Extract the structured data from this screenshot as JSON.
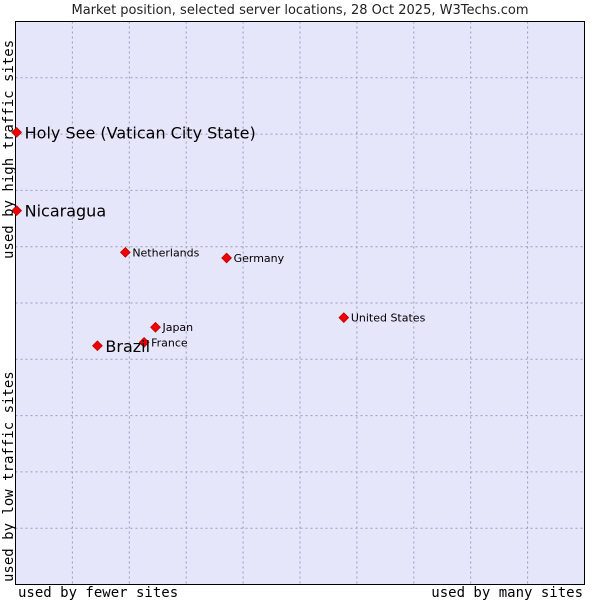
{
  "chart_data": {
    "type": "scatter",
    "title": "Market position, selected server locations, 28 Oct 2025, W3Techs.com",
    "xlabel_left": "used by fewer sites",
    "xlabel_right": "used by many sites",
    "ylabel_low": "used by low traffic sites",
    "ylabel_high": "used by high traffic sites",
    "xlim": [
      0,
      100
    ],
    "ylim": [
      0,
      100
    ],
    "grid": true,
    "colors": {
      "plot_bg": "#e6e6fa",
      "grid": "#9a9ab8",
      "marker": "#ee0000",
      "marker_edge": "#aa0000"
    },
    "points": [
      {
        "label": "Holy See (Vatican City State)",
        "x": 0.2,
        "y": 80.3,
        "emphasis": true
      },
      {
        "label": "Nicaragua",
        "x": 0.2,
        "y": 66.4,
        "emphasis": true
      },
      {
        "label": "Netherlands",
        "x": 19.3,
        "y": 59.0,
        "emphasis": false
      },
      {
        "label": "Germany",
        "x": 37.1,
        "y": 58.0,
        "emphasis": false
      },
      {
        "label": "United States",
        "x": 57.7,
        "y": 47.4,
        "emphasis": false
      },
      {
        "label": "Japan",
        "x": 24.6,
        "y": 45.7,
        "emphasis": false
      },
      {
        "label": "France",
        "x": 22.6,
        "y": 43.0,
        "emphasis": false
      },
      {
        "label": "Brazil",
        "x": 14.4,
        "y": 42.4,
        "emphasis": true
      }
    ]
  }
}
